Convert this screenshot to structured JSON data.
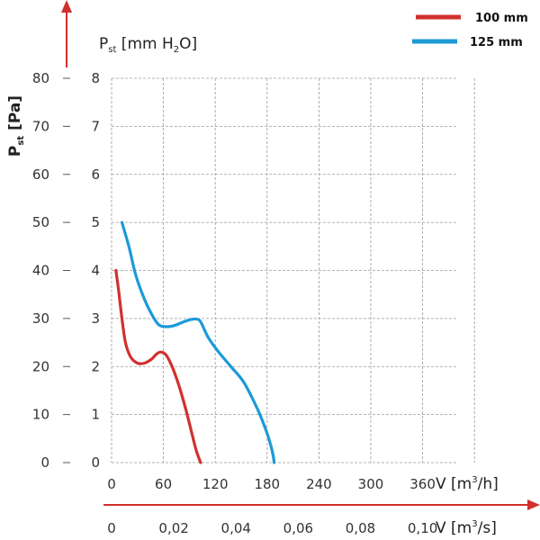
{
  "chart_data": {
    "type": "line",
    "y_left_label": {
      "main": "P",
      "sub": "st",
      "rest": " [Pa]"
    },
    "y_right_label": {
      "main": "P",
      "sub": "st",
      "rest_before": " [mm H",
      "sub2": "2",
      "rest_after": "O]"
    },
    "x_top_label": {
      "text": "V [m",
      "sup": "3",
      "rest": "/h]"
    },
    "x_bottom_label": {
      "text": "V [m",
      "sup": "3",
      "rest": "/s]"
    },
    "y_pa_ticks": [
      "0",
      "10",
      "20",
      "30",
      "40",
      "50",
      "60",
      "70",
      "80"
    ],
    "y_mm_ticks": [
      "0",
      "1",
      "2",
      "3",
      "4",
      "5",
      "6",
      "7",
      "8"
    ],
    "x_m3h_ticks": [
      "0",
      "60",
      "120",
      "180",
      "240",
      "300",
      "360"
    ],
    "x_m3s_ticks": [
      "0",
      "0,02",
      "0,04",
      "0,06",
      "0,08",
      "0,10"
    ],
    "xlim": [
      0,
      400
    ],
    "ylim_mm": [
      0,
      8
    ],
    "grid": true,
    "legend_placement": "top-right",
    "series": [
      {
        "name": "100 mm",
        "color": "#d0312d",
        "x": [
          5,
          8,
          12,
          16,
          22,
          30,
          38,
          46,
          52,
          57,
          63,
          70,
          78,
          86,
          93,
          98,
          103
        ],
        "y": [
          4.0,
          3.6,
          3.0,
          2.5,
          2.2,
          2.07,
          2.07,
          2.15,
          2.26,
          2.3,
          2.24,
          2.0,
          1.6,
          1.1,
          0.6,
          0.25,
          0.0
        ]
      },
      {
        "name": "125 mm",
        "color": "#1c9ad6",
        "x": [
          12,
          20,
          28,
          38,
          46,
          54,
          62,
          72,
          82,
          92,
          100,
          104,
          112,
          124,
          138,
          152,
          164,
          174,
          182,
          187,
          188
        ],
        "y": [
          5.0,
          4.5,
          3.9,
          3.4,
          3.1,
          2.88,
          2.83,
          2.85,
          2.92,
          2.98,
          2.98,
          2.9,
          2.6,
          2.3,
          2.0,
          1.7,
          1.3,
          0.9,
          0.5,
          0.15,
          0.0
        ]
      }
    ]
  }
}
